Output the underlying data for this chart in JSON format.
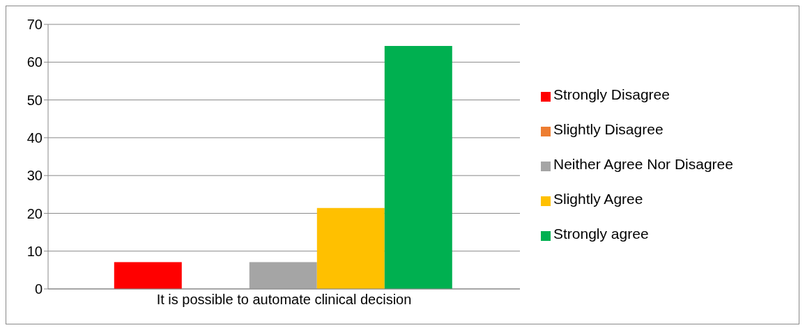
{
  "chart_data": {
    "type": "bar",
    "categories": [
      "It is possible to automate clinical decision"
    ],
    "series": [
      {
        "name": "Strongly Disagree",
        "color": "#ff0000",
        "values": [
          7.1
        ]
      },
      {
        "name": "Slightly Disagree",
        "color": "#ed7d31",
        "values": [
          0
        ]
      },
      {
        "name": "Neither Agree Nor Disagree",
        "color": "#a5a5a5",
        "values": [
          7.1
        ]
      },
      {
        "name": "Slightly Agree",
        "color": "#ffc000",
        "values": [
          21.4
        ]
      },
      {
        "name": "Strongly agree",
        "color": "#00b050",
        "values": [
          64.3
        ]
      }
    ],
    "ylim": [
      0,
      70
    ],
    "yticks": [
      0,
      10,
      20,
      30,
      40,
      50,
      60,
      70
    ],
    "grid": "y",
    "legend": "right"
  }
}
